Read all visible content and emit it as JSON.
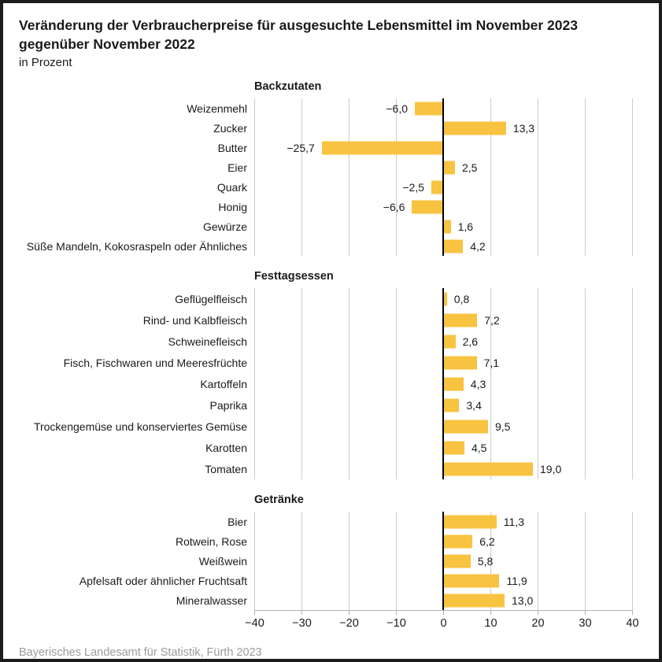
{
  "title_line1": "Veränderung der Verbraucherpreise für ausgesuchte Lebensmittel im November 2023",
  "title_line2": "gegenüber November 2022",
  "subtitle": "in Prozent",
  "footer": "Bayerisches Landesamt für Statistik, Fürth 2023",
  "colors": {
    "bar": "#F8C340",
    "zero_line": "#000000",
    "gridline": "#cbcbcb",
    "footer_text": "#9b9b9b"
  },
  "axis": {
    "ticks": [
      "−40",
      "−30",
      "−20",
      "−10",
      "0",
      "10",
      "20",
      "30",
      "40"
    ]
  },
  "sections": [
    {
      "header": "Backzutaten",
      "rows": [
        {
          "label": "Weizenmehl",
          "value": -6.0,
          "value_text": "−6,0"
        },
        {
          "label": "Zucker",
          "value": 13.3,
          "value_text": "13,3"
        },
        {
          "label": "Butter",
          "value": -25.7,
          "value_text": "−25,7"
        },
        {
          "label": "Eier",
          "value": 2.5,
          "value_text": "2,5"
        },
        {
          "label": "Quark",
          "value": -2.5,
          "value_text": "−2,5"
        },
        {
          "label": "Honig",
          "value": -6.6,
          "value_text": "−6,6"
        },
        {
          "label": "Gewürze",
          "value": 1.6,
          "value_text": "1,6"
        },
        {
          "label": "Süße Mandeln, Kokosraspeln oder Ähnliches",
          "value": 4.2,
          "value_text": "4,2"
        }
      ]
    },
    {
      "header": "Festtagsessen",
      "rows": [
        {
          "label": "Geflügelfleisch",
          "value": 0.8,
          "value_text": "0,8"
        },
        {
          "label": "Rind- und Kalbfleisch",
          "value": 7.2,
          "value_text": "7,2"
        },
        {
          "label": "Schweinefleisch",
          "value": 2.6,
          "value_text": "2,6"
        },
        {
          "label": "Fisch, Fischwaren und Meeresfrüchte",
          "value": 7.1,
          "value_text": "7,1"
        },
        {
          "label": "Kartoffeln",
          "value": 4.3,
          "value_text": "4,3"
        },
        {
          "label": "Paprika",
          "value": 3.4,
          "value_text": "3,4"
        },
        {
          "label": "Trockengemüse und konserviertes Gemüse",
          "value": 9.5,
          "value_text": "9,5"
        },
        {
          "label": "Karotten",
          "value": 4.5,
          "value_text": "4,5"
        },
        {
          "label": "Tomaten",
          "value": 19.0,
          "value_text": "19,0"
        }
      ]
    },
    {
      "header": "Getränke",
      "rows": [
        {
          "label": "Bier",
          "value": 11.3,
          "value_text": "11,3"
        },
        {
          "label": "Rotwein, Rose",
          "value": 6.2,
          "value_text": "6,2"
        },
        {
          "label": "Weißwein",
          "value": 5.8,
          "value_text": "5,8"
        },
        {
          "label": "Apfelsaft oder ähnlicher Fruchtsaft",
          "value": 11.9,
          "value_text": "11,9"
        },
        {
          "label": "Mineralwasser",
          "value": 13.0,
          "value_text": "13,0"
        }
      ]
    }
  ],
  "chart_data": {
    "type": "bar",
    "orientation": "horizontal",
    "title": "Veränderung der Verbraucherpreise für ausgesuchte Lebensmittel im November 2023 gegenüber November 2022",
    "subtitle": "in Prozent",
    "xlim": [
      -40,
      40
    ],
    "x_ticks": [
      -40,
      -30,
      -20,
      -10,
      0,
      10,
      20,
      30,
      40
    ],
    "grid": true,
    "bar_color": "#F8C340",
    "source": "Bayerisches Landesamt für Statistik, Fürth 2023",
    "groups": [
      {
        "name": "Backzutaten",
        "categories": [
          "Weizenmehl",
          "Zucker",
          "Butter",
          "Eier",
          "Quark",
          "Honig",
          "Gewürze",
          "Süße Mandeln, Kokosraspeln oder Ähnliches"
        ],
        "values": [
          -6.0,
          13.3,
          -25.7,
          2.5,
          -2.5,
          -6.6,
          1.6,
          4.2
        ]
      },
      {
        "name": "Festtagsessen",
        "categories": [
          "Geflügelfleisch",
          "Rind- und Kalbfleisch",
          "Schweinefleisch",
          "Fisch, Fischwaren und Meeresfrüchte",
          "Kartoffeln",
          "Paprika",
          "Trockengemüse und konserviertes Gemüse",
          "Karotten",
          "Tomaten"
        ],
        "values": [
          0.8,
          7.2,
          2.6,
          7.1,
          4.3,
          3.4,
          9.5,
          4.5,
          19.0
        ]
      },
      {
        "name": "Getränke",
        "categories": [
          "Bier",
          "Rotwein, Rose",
          "Weißwein",
          "Apfelsaft oder ähnlicher Fruchtsaft",
          "Mineralwasser"
        ],
        "values": [
          11.3,
          6.2,
          5.8,
          11.9,
          13.0
        ]
      }
    ]
  }
}
